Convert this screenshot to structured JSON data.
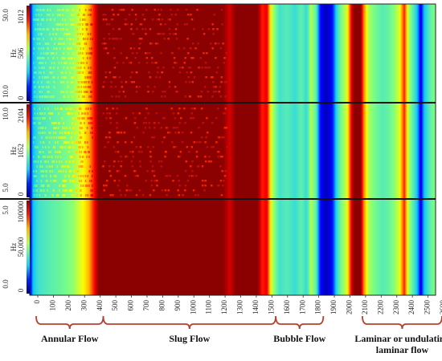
{
  "chart_data": {
    "type": "heatmap",
    "x_ticks": [
      0,
      100,
      200,
      300,
      400,
      500,
      600,
      700,
      800,
      900,
      1000,
      1100,
      1200,
      1300,
      1400,
      1500,
      1600,
      1700,
      1800,
      1900,
      2000,
      2100,
      2200,
      2300,
      2400,
      2500,
      2600
    ],
    "x_range": [
      0,
      2600
    ],
    "colormap": [
      "#00008b",
      "#0000ff",
      "#00bfff",
      "#40e0d0",
      "#7fff7f",
      "#ffff00",
      "#ff8000",
      "#ff0000",
      "#8b0000"
    ],
    "panels": [
      {
        "name": "top",
        "axis_unit": "Hz",
        "freq_ticks": [
          "0",
          "506",
          "1012"
        ],
        "side_ticks": [
          "10.0",
          "50.0"
        ]
      },
      {
        "name": "middle",
        "axis_unit": "Hz",
        "freq_ticks": [
          "0",
          "1052",
          "2104"
        ],
        "side_ticks": [
          "5.0",
          "10.0"
        ]
      },
      {
        "name": "bottom",
        "axis_unit": "Hz",
        "freq_ticks": [
          "0",
          "50,000",
          "100000"
        ],
        "side_ticks": [
          "0.0",
          "5.0"
        ]
      }
    ],
    "column_intensity_by_x": [
      [
        0,
        0.05
      ],
      [
        25,
        0.3
      ],
      [
        60,
        0.38
      ],
      [
        120,
        0.42
      ],
      [
        200,
        0.46
      ],
      [
        280,
        0.52
      ],
      [
        330,
        0.6
      ],
      [
        380,
        0.7
      ],
      [
        420,
        0.9
      ],
      [
        440,
        1.0
      ],
      [
        1240,
        1.0
      ],
      [
        1280,
        0.92
      ],
      [
        1320,
        1.0
      ],
      [
        1460,
        1.0
      ],
      [
        1490,
        0.85
      ],
      [
        1520,
        0.9
      ],
      [
        1545,
        0.6
      ],
      [
        1570,
        0.5
      ],
      [
        1600,
        0.38
      ],
      [
        1650,
        0.42
      ],
      [
        1700,
        0.36
      ],
      [
        1740,
        0.44
      ],
      [
        1775,
        0.35
      ],
      [
        1800,
        0.55
      ],
      [
        1835,
        0.45
      ],
      [
        1855,
        0.15
      ],
      [
        1900,
        0.05
      ],
      [
        1945,
        0.15
      ],
      [
        1975,
        0.4
      ],
      [
        2000,
        0.5
      ],
      [
        2035,
        0.6
      ],
      [
        2060,
        0.9
      ],
      [
        2080,
        1.0
      ],
      [
        2120,
        1.0
      ],
      [
        2140,
        0.75
      ],
      [
        2170,
        0.55
      ],
      [
        2210,
        0.48
      ],
      [
        2260,
        0.42
      ],
      [
        2300,
        0.45
      ],
      [
        2340,
        0.52
      ],
      [
        2370,
        0.6
      ],
      [
        2400,
        0.85
      ],
      [
        2420,
        0.6
      ],
      [
        2450,
        0.45
      ],
      [
        2480,
        0.3
      ],
      [
        2505,
        0.08
      ],
      [
        2530,
        0.3
      ],
      [
        2570,
        0.45
      ],
      [
        2600,
        0.5
      ]
    ],
    "regions": [
      {
        "label": "Annular Flow",
        "x_start": 0,
        "x_end": 430
      },
      {
        "label": "Slug Flow",
        "x_start": 430,
        "x_end": 1535
      },
      {
        "label": "Bubble Flow",
        "x_start": 1535,
        "x_end": 1840
      },
      {
        "label": "Laminar or undulating laminar flow",
        "label_lines": [
          "Laminar or undulating",
          "laminar flow"
        ],
        "x_start": 2090,
        "x_end": 2600
      }
    ],
    "grid": false
  }
}
